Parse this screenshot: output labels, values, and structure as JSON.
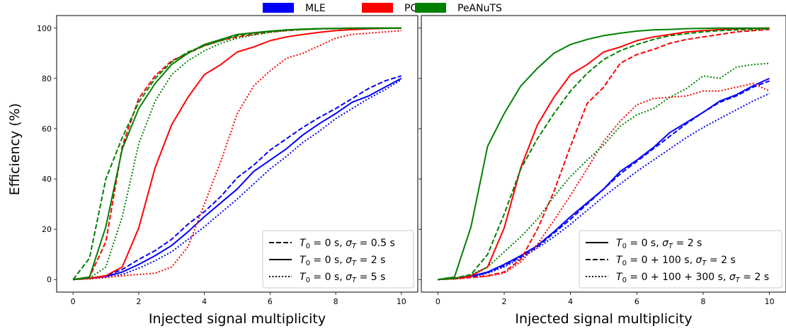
{
  "chart_data": {
    "type": "line",
    "ylabel": "Efficiency (%)",
    "methods": [
      {
        "name": "MLE",
        "color": "#0000ff"
      },
      {
        "name": "PCA",
        "color": "#ff0000"
      },
      {
        "name": "PeANuTS",
        "color": "#008000"
      }
    ],
    "panels": [
      {
        "xlabel": "Injected signal multiplicity",
        "xlim": [
          -0.5,
          10.5
        ],
        "ylim": [
          -5,
          105
        ],
        "xticks": [
          0,
          2,
          4,
          6,
          8,
          10
        ],
        "yticks": [
          0,
          20,
          40,
          60,
          80,
          100
        ],
        "show_ylabel": true,
        "legend_position": "lower-right",
        "legend": [
          {
            "style": "dashed",
            "label": "T₀ = 0 s, σT = 0.5 s"
          },
          {
            "style": "solid",
            "label": "T₀ = 0 s, σT = 2 s"
          },
          {
            "style": "dotted",
            "label": "T₀ = 0 s, σT = 5 s"
          }
        ],
        "series": [
          {
            "method": "MLE",
            "style": "dashed",
            "x": [
              0,
              0.5,
              1,
              1.5,
              2,
              2.5,
              3,
              3.5,
              4,
              4.5,
              5,
              5.5,
              6,
              6.5,
              7,
              7.5,
              8,
              8.5,
              9,
              9.5,
              10
            ],
            "y": [
              0,
              0.5,
              1.5,
              4,
              8,
              11.5,
              16,
              22,
              27,
              33,
              40.5,
              45.5,
              51.5,
              56,
              60.5,
              64.5,
              68,
              72,
              76,
              79,
              81
            ]
          },
          {
            "method": "MLE",
            "style": "solid",
            "x": [
              0,
              0.5,
              1,
              1.5,
              2,
              2.5,
              3,
              3.5,
              4,
              4.5,
              5,
              5.5,
              6,
              6.5,
              7,
              7.5,
              8,
              8.5,
              9,
              9.5,
              10
            ],
            "y": [
              0,
              0.5,
              1.2,
              3,
              6,
              9.5,
              13.5,
              19,
              25,
              30.5,
              36,
              43,
              47.5,
              52,
              57.5,
              62,
              66,
              70.5,
              73,
              76.5,
              80
            ]
          },
          {
            "method": "MLE",
            "style": "dotted",
            "x": [
              0,
              0.5,
              1,
              1.5,
              2,
              2.5,
              3,
              3.5,
              4,
              4.5,
              5,
              5.5,
              6,
              6.5,
              7,
              7.5,
              8,
              8.5,
              9,
              9.5,
              10
            ],
            "y": [
              0,
              0.3,
              0.8,
              2,
              4.5,
              7.5,
              11,
              16,
              21,
              26.5,
              32,
              38,
              44,
              49,
              54.5,
              59,
              64,
              68,
              72,
              75.5,
              79.5
            ]
          },
          {
            "method": "PCA",
            "style": "dashed",
            "x": [
              0,
              0.5,
              1,
              1.5,
              2,
              2.5,
              3,
              3.5,
              4,
              4.5,
              5,
              5.5,
              6,
              6.5,
              7,
              7.5,
              8,
              8.5,
              9,
              9.5,
              10
            ],
            "y": [
              0,
              1,
              15,
              53,
              72,
              81,
              87,
              90,
              93,
              95,
              96.5,
              97.5,
              98.5,
              99,
              99.5,
              99.7,
              99.8,
              99.9,
              100,
              100,
              100
            ]
          },
          {
            "method": "PCA",
            "style": "solid",
            "x": [
              0,
              0.5,
              1,
              1.5,
              2,
              2.5,
              3,
              3.5,
              4,
              4.5,
              5,
              5.5,
              6,
              6.5,
              7,
              7.5,
              8,
              8.5,
              9,
              9.5,
              10
            ],
            "y": [
              0,
              0.5,
              1.5,
              5,
              20.5,
              44.5,
              61.5,
              72.5,
              81.5,
              85.5,
              90.5,
              92.5,
              95,
              96.5,
              97.5,
              98.3,
              99,
              99.4,
              99.7,
              99.9,
              100
            ]
          },
          {
            "method": "PCA",
            "style": "dotted",
            "x": [
              0,
              0.5,
              1,
              1.5,
              2,
              2.5,
              3,
              3.5,
              4,
              4.5,
              5,
              5.5,
              6,
              6.5,
              7,
              7.5,
              8,
              8.5,
              9,
              9.5,
              10
            ],
            "y": [
              0,
              0.3,
              0.8,
              1.5,
              2,
              2.5,
              5,
              13,
              30,
              47,
              66,
              77,
              83,
              88,
              90,
              93,
              96,
              97.5,
              98,
              98.5,
              99
            ]
          },
          {
            "method": "PeANuTS",
            "style": "dashed",
            "x": [
              0,
              0.5,
              1,
              1.5,
              2,
              2.5,
              3,
              3.5,
              4,
              4.5,
              5,
              5.5,
              6,
              6.5,
              7,
              7.5,
              8,
              8.5,
              9,
              9.5,
              10
            ],
            "y": [
              0,
              8.5,
              40,
              56.5,
              70.5,
              80,
              86.5,
              90.5,
              93,
              95,
              97,
              98,
              98.7,
              99.3,
              99.6,
              99.8,
              99.9,
              100,
              100,
              100,
              100
            ]
          },
          {
            "method": "PeANuTS",
            "style": "solid",
            "x": [
              0,
              0.5,
              1,
              1.5,
              2,
              2.5,
              3,
              3.5,
              4,
              4.5,
              5,
              5.5,
              6,
              6.5,
              7,
              7.5,
              8,
              8.5,
              9,
              9.5,
              10
            ],
            "y": [
              0,
              1,
              21,
              52,
              68,
              78,
              85.5,
              90,
              93.5,
              95.5,
              97.5,
              98.2,
              98.8,
              99.3,
              99.6,
              99.8,
              99.9,
              100,
              100,
              100,
              100
            ]
          },
          {
            "method": "PeANuTS",
            "style": "dotted",
            "x": [
              0,
              0.5,
              1,
              1.5,
              2,
              2.5,
              3,
              3.5,
              4,
              4.5,
              5,
              5.5,
              6,
              6.5,
              7,
              7.5,
              8,
              8.5,
              9,
              9.5,
              10
            ],
            "y": [
              0,
              0.5,
              5,
              25,
              54,
              71,
              81.5,
              87,
              91,
              94,
              96,
              97.3,
              98.3,
              99,
              99.4,
              99.7,
              99.8,
              99.9,
              100,
              100,
              100
            ]
          }
        ]
      },
      {
        "xlabel": "Injected signal multiplicity",
        "xlim": [
          -0.5,
          10.5
        ],
        "ylim": [
          -5,
          105
        ],
        "xticks": [
          0,
          2,
          4,
          6,
          8,
          10
        ],
        "yticks": [
          0,
          20,
          40,
          60,
          80,
          100
        ],
        "show_ylabel": false,
        "legend_position": "lower-right",
        "legend": [
          {
            "style": "solid",
            "label": "T₀ = 0 s, σT = 2 s"
          },
          {
            "style": "dashed",
            "label": "T₀ = 0 + 100 s, σT = 2 s"
          },
          {
            "style": "dotted",
            "label": "T₀ = 0 + 100 + 300 s, σT = 2 s"
          }
        ],
        "series": [
          {
            "method": "MLE",
            "style": "solid",
            "x": [
              0,
              0.5,
              1,
              1.5,
              2,
              2.5,
              3,
              3.5,
              4,
              4.5,
              5,
              5.5,
              6,
              6.5,
              7,
              7.5,
              8,
              8.5,
              9,
              9.5,
              10
            ],
            "y": [
              0,
              0.5,
              1.3,
              3,
              6,
              9.5,
              13.5,
              19,
              25,
              30.5,
              36,
              43,
              47.5,
              52.5,
              58.5,
              62.5,
              66.5,
              71,
              73.5,
              77,
              80
            ]
          },
          {
            "method": "MLE",
            "style": "dashed",
            "x": [
              0,
              0.5,
              1,
              1.5,
              2,
              2.5,
              3,
              3.5,
              4,
              4.5,
              5,
              5.5,
              6,
              6.5,
              7,
              7.5,
              8,
              8.5,
              9,
              9.5,
              10
            ],
            "y": [
              0,
              0.4,
              1.1,
              2.8,
              5.5,
              9,
              13,
              18.5,
              24,
              30,
              36,
              42,
              47,
              52,
              57,
              62,
              66.5,
              70.5,
              73,
              76.5,
              79
            ]
          },
          {
            "method": "MLE",
            "style": "dotted",
            "x": [
              0,
              0.5,
              1,
              1.5,
              2,
              2.5,
              3,
              3.5,
              4,
              4.5,
              5,
              5.5,
              6,
              6.5,
              7,
              7.5,
              8,
              8.5,
              9,
              9.5,
              10
            ],
            "y": [
              0,
              0.3,
              1,
              2.5,
              5,
              8.5,
              12.5,
              17,
              22,
              27.5,
              33,
              38,
              43,
              47.5,
              52,
              56.5,
              60.5,
              64,
              67.5,
              71,
              74
            ]
          },
          {
            "method": "PCA",
            "style": "solid",
            "x": [
              0,
              0.5,
              1,
              1.5,
              2,
              2.5,
              3,
              3.5,
              4,
              4.5,
              5,
              5.5,
              6,
              6.5,
              7,
              7.5,
              8,
              8.5,
              9,
              9.5,
              10
            ],
            "y": [
              0,
              0.5,
              1.5,
              5,
              20.5,
              44.5,
              61.5,
              72.5,
              81.5,
              85.5,
              90.5,
              92.5,
              95,
              96.5,
              97.5,
              98.5,
              99,
              99.4,
              99.7,
              99.9,
              100
            ]
          },
          {
            "method": "PCA",
            "style": "dashed",
            "x": [
              0,
              0.5,
              1,
              1.5,
              2,
              2.5,
              3,
              3.5,
              4,
              4.5,
              5,
              5.5,
              6,
              6.5,
              7,
              7.5,
              8,
              8.5,
              9,
              9.5,
              10
            ],
            "y": [
              0,
              0.3,
              0.8,
              1.5,
              3,
              8,
              20,
              35,
              53,
              70,
              76.5,
              86,
              89.5,
              91.5,
              94,
              95.5,
              96.5,
              97.5,
              98.5,
              99,
              99.5
            ]
          },
          {
            "method": "PCA",
            "style": "dotted",
            "x": [
              0,
              0.5,
              1,
              1.5,
              2,
              2.5,
              3,
              3.5,
              4,
              4.5,
              5,
              5.5,
              6,
              6.5,
              7,
              7.5,
              8,
              8.5,
              9,
              9.5,
              10
            ],
            "y": [
              0,
              0.3,
              0.8,
              1.3,
              2.5,
              7,
              14,
              23.5,
              33.5,
              44,
              55,
              63,
              69.5,
              72,
              72.5,
              73,
              75,
              75,
              76.5,
              78,
              75
            ]
          },
          {
            "method": "PeANuTS",
            "style": "solid",
            "x": [
              0,
              0.5,
              1,
              1.5,
              2,
              2.5,
              3,
              3.5,
              4,
              4.5,
              5,
              5.5,
              6,
              6.5,
              7,
              7.5,
              8,
              8.5,
              9,
              9.5,
              10
            ],
            "y": [
              0,
              1,
              21,
              53,
              66,
              77,
              84,
              90,
              93.5,
              95.5,
              97,
              98,
              98.8,
              99.3,
              99.5,
              99.8,
              99.9,
              100,
              100,
              100,
              100
            ]
          },
          {
            "method": "PeANuTS",
            "style": "dashed",
            "x": [
              0,
              0.5,
              1,
              1.5,
              2,
              2.5,
              3,
              3.5,
              4,
              4.5,
              5,
              5.5,
              6,
              6.5,
              7,
              7.5,
              8,
              8.5,
              9,
              9.5,
              10
            ],
            "y": [
              0,
              0.5,
              2,
              10,
              26,
              44,
              56,
              66,
              75,
              82,
              87.5,
              91,
              93.5,
              95.5,
              97,
              97.8,
              98.5,
              99,
              99.3,
              99.5,
              99.8
            ]
          },
          {
            "method": "PeANuTS",
            "style": "dotted",
            "x": [
              0,
              0.5,
              1,
              1.5,
              2,
              2.5,
              3,
              3.5,
              4,
              4.5,
              5,
              5.5,
              6,
              6.5,
              7,
              7.5,
              8,
              8.5,
              9,
              9.5,
              10
            ],
            "y": [
              0,
              0.4,
              2,
              5,
              11,
              17,
              24,
              33,
              41,
              47.5,
              53.5,
              61,
              65.5,
              68,
              72.5,
              76,
              81,
              80,
              84.5,
              85.5,
              86
            ]
          }
        ]
      }
    ]
  }
}
